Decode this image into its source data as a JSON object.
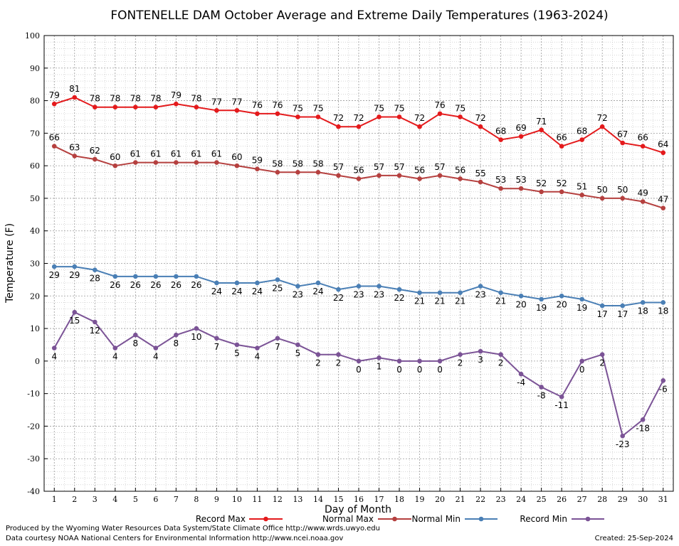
{
  "chart_data": {
    "type": "line",
    "title": "FONTENELLE DAM October Average and Extreme Daily Temperatures (1963-2024)",
    "xlabel": "Day of Month",
    "ylabel": "Temperature (F)",
    "ylim": [
      -40,
      100
    ],
    "xlim": [
      1,
      31
    ],
    "grid": true,
    "legend_position": "bottom",
    "x": [
      1,
      2,
      3,
      4,
      5,
      6,
      7,
      8,
      9,
      10,
      11,
      12,
      13,
      14,
      15,
      16,
      17,
      18,
      19,
      20,
      21,
      22,
      23,
      24,
      25,
      26,
      27,
      28,
      29,
      30,
      31
    ],
    "y_ticks": [
      100,
      90,
      80,
      70,
      60,
      50,
      40,
      30,
      20,
      10,
      0,
      -10,
      -20,
      -30,
      -40
    ],
    "series": [
      {
        "name": "Record Max",
        "color": "#e41a1c",
        "label_position": "above",
        "values": [
          79,
          81,
          78,
          78,
          78,
          78,
          79,
          78,
          77,
          77,
          76,
          76,
          75,
          75,
          72,
          72,
          75,
          75,
          72,
          76,
          75,
          72,
          68,
          69,
          71,
          66,
          68,
          72,
          67,
          66,
          64
        ]
      },
      {
        "name": "Normal Max",
        "color": "#b5403f",
        "label_position": "above",
        "values": [
          66,
          63,
          62,
          60,
          61,
          61,
          61,
          61,
          61,
          60,
          59,
          58,
          58,
          58,
          57,
          56,
          57,
          57,
          56,
          57,
          56,
          55,
          53,
          53,
          52,
          52,
          51,
          50,
          50,
          49,
          47
        ]
      },
      {
        "name": "Normal Min",
        "color": "#4a7fb5",
        "label_position": "below",
        "values": [
          29,
          29,
          28,
          26,
          26,
          26,
          26,
          26,
          24,
          24,
          24,
          25,
          23,
          24,
          22,
          23,
          23,
          22,
          21,
          21,
          21,
          23,
          21,
          20,
          19,
          20,
          19,
          17,
          17,
          18,
          18
        ]
      },
      {
        "name": "Record Min",
        "color": "#7b5396",
        "label_position": "below",
        "values": [
          4,
          15,
          12,
          4,
          8,
          4,
          8,
          10,
          7,
          5,
          4,
          7,
          5,
          2,
          2,
          0,
          1,
          0,
          0,
          0,
          2,
          3,
          2,
          -4,
          -8,
          -11,
          0,
          2,
          -23,
          -18,
          -6
        ]
      }
    ]
  },
  "footer": {
    "produced_by": "Produced by the Wyoming Water Resources Data System/State Climate Office http://www.wrds.uwyo.edu",
    "courtesy": "Data courtesy NOAA National Centers for Environmental Information http://www.ncei.noaa.gov",
    "created": "Created: 25-Sep-2024"
  }
}
